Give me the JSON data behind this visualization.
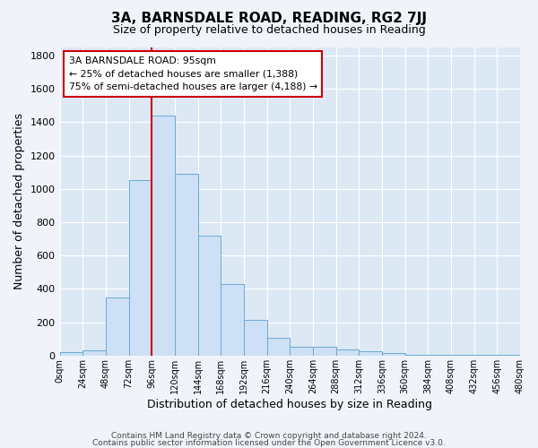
{
  "title": "3A, BARNSDALE ROAD, READING, RG2 7JJ",
  "subtitle": "Size of property relative to detached houses in Reading",
  "xlabel": "Distribution of detached houses by size in Reading",
  "ylabel": "Number of detached properties",
  "bar_color": "#cde0f5",
  "bar_edge_color": "#6aaad4",
  "background_color": "#dde8f5",
  "grid_color": "#ffffff",
  "bin_edges": [
    0,
    24,
    48,
    72,
    96,
    120,
    144,
    168,
    192,
    216,
    240,
    264,
    288,
    312,
    336,
    360,
    384,
    408,
    432,
    456,
    480
  ],
  "bar_heights": [
    20,
    30,
    350,
    1050,
    1440,
    1090,
    720,
    430,
    215,
    105,
    55,
    55,
    35,
    25,
    15,
    5,
    5,
    5,
    5,
    5
  ],
  "vline_x": 96,
  "vline_color": "#cc0000",
  "annotation_text": "3A BARNSDALE ROAD: 95sqm\n← 25% of detached houses are smaller (1,388)\n75% of semi-detached houses are larger (4,188) →",
  "annotation_box_edge": "#cc0000",
  "ylim": [
    0,
    1850
  ],
  "yticks": [
    0,
    200,
    400,
    600,
    800,
    1000,
    1200,
    1400,
    1600,
    1800
  ],
  "footer_line1": "Contains HM Land Registry data © Crown copyright and database right 2024.",
  "footer_line2": "Contains public sector information licensed under the Open Government Licence v3.0."
}
